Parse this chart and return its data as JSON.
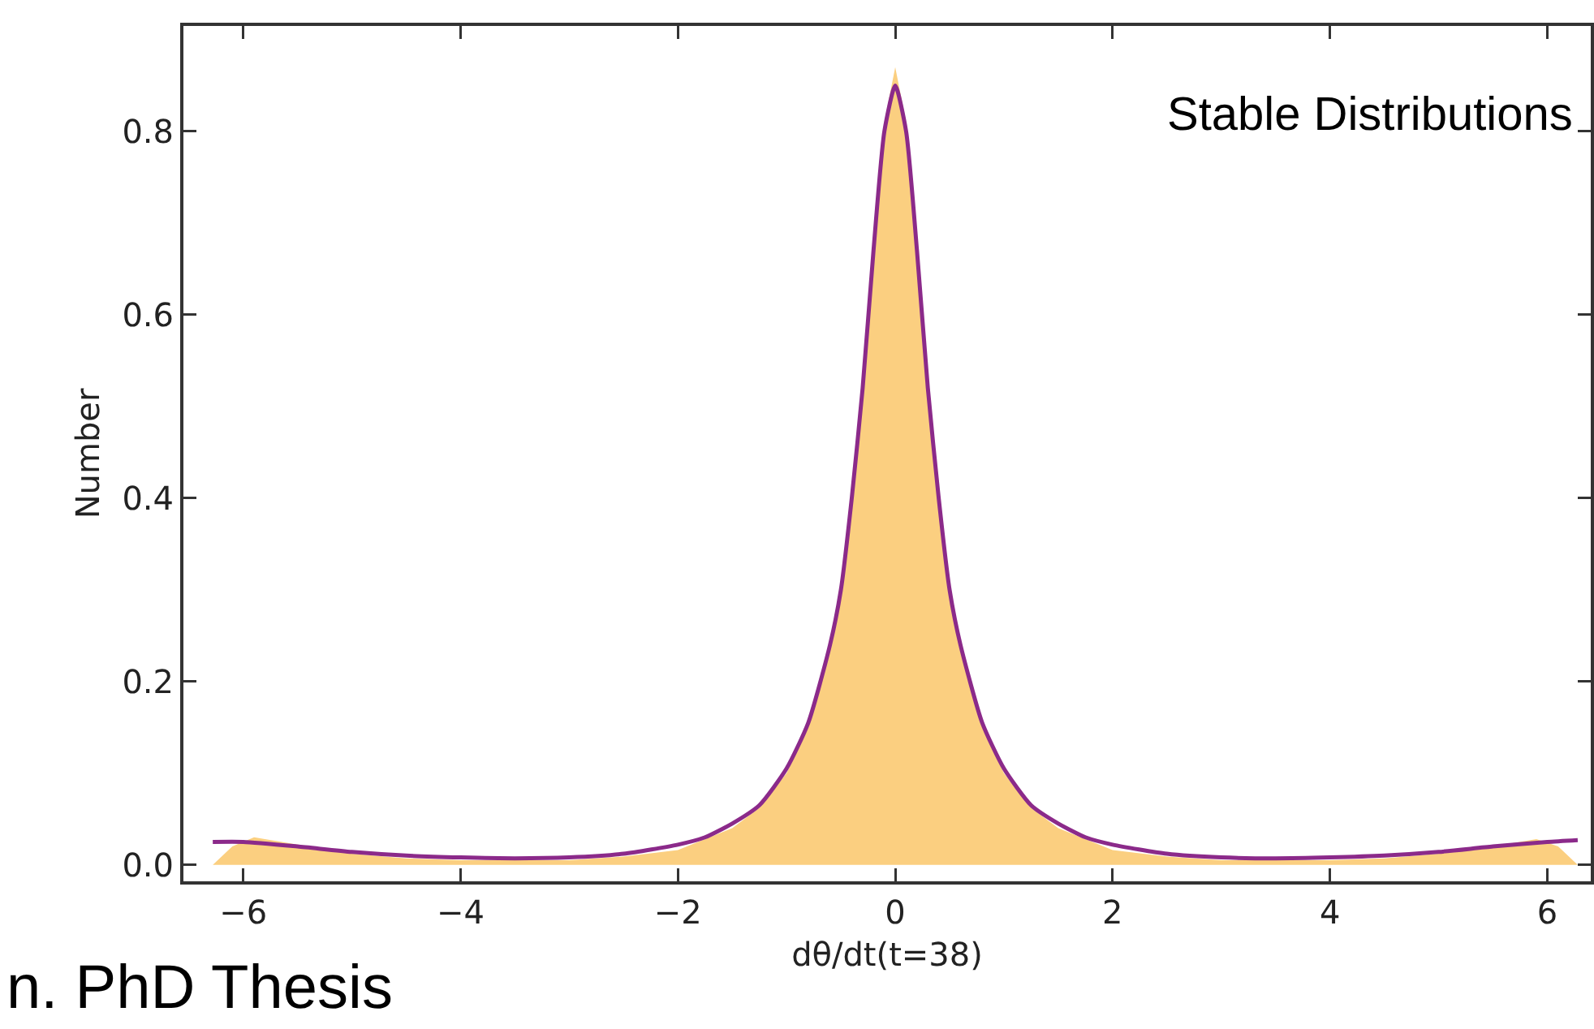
{
  "chart_data": {
    "type": "area",
    "xlabel": "dθ/dt(t=38)",
    "ylabel": "Number",
    "annotations": [
      "Stable Distributions",
      "n. PhD Thesis"
    ],
    "xlim": [
      -6.55,
      6.4
    ],
    "ylim": [
      -0.018,
      0.915
    ],
    "xticks": [
      {
        "value": -6,
        "label": "−6"
      },
      {
        "value": -4,
        "label": "−4"
      },
      {
        "value": -2,
        "label": "−2"
      },
      0,
      2,
      4,
      6
    ],
    "yticks": [
      {
        "value": 0,
        "label": "0.0"
      },
      0.2,
      0.4,
      0.6,
      0.8
    ],
    "grid": false,
    "series": [
      {
        "type": "area",
        "color": "#fbcf80",
        "x": [
          -6.28,
          -6.1,
          -5.9,
          -5.5,
          -5,
          -4.5,
          -4,
          -3,
          -2.5,
          -2,
          -1.5,
          -1.25,
          -1,
          -0.8,
          -0.6,
          -0.5,
          -0.4,
          -0.3,
          -0.2,
          -0.1,
          0,
          0.1,
          0.2,
          0.3,
          0.4,
          0.5,
          0.6,
          0.8,
          1,
          1.25,
          1.5,
          2,
          2.5,
          3,
          4,
          4.5,
          5,
          5.5,
          5.9,
          6.1,
          6.28
        ],
        "values": [
          0.0,
          0.02,
          0.03,
          0.022,
          0.012,
          0.007,
          0.005,
          0.005,
          0.009,
          0.016,
          0.04,
          0.062,
          0.1,
          0.15,
          0.235,
          0.305,
          0.4,
          0.53,
          0.68,
          0.81,
          0.87,
          0.81,
          0.68,
          0.53,
          0.4,
          0.305,
          0.235,
          0.15,
          0.1,
          0.062,
          0.04,
          0.016,
          0.009,
          0.005,
          0.005,
          0.007,
          0.012,
          0.02,
          0.028,
          0.02,
          0.0
        ]
      },
      {
        "type": "line",
        "color": "#8b2a8a",
        "x": [
          -6.28,
          -6,
          -5.5,
          -5,
          -4.5,
          -4,
          -3.5,
          -3,
          -2.5,
          -2,
          -1.75,
          -1.5,
          -1.25,
          -1,
          -0.8,
          -0.6,
          -0.5,
          -0.4,
          -0.3,
          -0.2,
          -0.1,
          0,
          0.1,
          0.2,
          0.3,
          0.4,
          0.5,
          0.6,
          0.8,
          1,
          1.25,
          1.5,
          1.75,
          2,
          2.5,
          3,
          3.5,
          4,
          4.5,
          5,
          5.5,
          6,
          6.28
        ],
        "values": [
          0.025,
          0.025,
          0.02,
          0.014,
          0.01,
          0.008,
          0.007,
          0.008,
          0.012,
          0.022,
          0.03,
          0.045,
          0.065,
          0.105,
          0.155,
          0.24,
          0.3,
          0.4,
          0.52,
          0.67,
          0.8,
          0.85,
          0.8,
          0.67,
          0.52,
          0.4,
          0.3,
          0.24,
          0.155,
          0.105,
          0.065,
          0.045,
          0.03,
          0.022,
          0.012,
          0.008,
          0.007,
          0.008,
          0.01,
          0.014,
          0.02,
          0.025,
          0.027
        ]
      }
    ]
  }
}
